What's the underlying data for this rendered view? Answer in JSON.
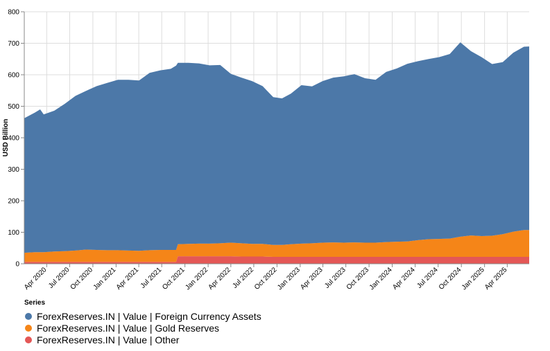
{
  "chart_data": {
    "type": "area",
    "stacked": true,
    "ylabel": "USD Billion",
    "ylim": [
      0,
      800
    ],
    "yticks": [
      0,
      100,
      200,
      300,
      400,
      500,
      600,
      700,
      800
    ],
    "xlim": [
      "2020-01-03",
      "2025-06-27"
    ],
    "xticks": [
      "Apr 2020",
      "Jul 2020",
      "Oct 2020",
      "Jan 2021",
      "Apr 2021",
      "Jul 2021",
      "Oct 2021",
      "Jan 2022",
      "Apr 2022",
      "Jul 2022",
      "Oct 2022",
      "Jan 2023",
      "Apr 2023",
      "Jul 2023",
      "Oct 2023",
      "Jan 2024",
      "Apr 2024",
      "Jul 2024",
      "Oct 2024",
      "Jan 2025",
      "Apr 2025"
    ],
    "grid": true,
    "legend_position": "bottom-left",
    "legend_title": "Series",
    "x": [
      "2020-01-03",
      "2020-02-14",
      "2020-03-06",
      "2020-03-20",
      "2020-05-01",
      "2020-06-12",
      "2020-07-24",
      "2020-09-04",
      "2020-10-16",
      "2020-11-27",
      "2021-01-08",
      "2021-02-19",
      "2021-04-02",
      "2021-05-14",
      "2021-06-25",
      "2021-08-06",
      "2021-08-27",
      "2021-09-03",
      "2021-10-15",
      "2021-11-26",
      "2022-01-07",
      "2022-02-18",
      "2022-04-01",
      "2022-05-13",
      "2022-06-24",
      "2022-08-05",
      "2022-09-16",
      "2022-10-21",
      "2022-11-25",
      "2023-01-06",
      "2023-02-17",
      "2023-03-31",
      "2023-05-12",
      "2023-06-23",
      "2023-08-04",
      "2023-09-15",
      "2023-10-27",
      "2023-12-08",
      "2024-01-19",
      "2024-03-01",
      "2024-04-12",
      "2024-05-24",
      "2024-07-05",
      "2024-08-16",
      "2024-09-27",
      "2024-11-08",
      "2024-12-20",
      "2025-01-31",
      "2025-03-14",
      "2025-04-25",
      "2025-06-06",
      "2025-06-27"
    ],
    "series": [
      {
        "name": "ForexReserves.IN | Value | Other",
        "values": [
          6,
          6,
          6,
          6,
          6,
          6,
          6,
          6,
          6,
          6,
          6,
          6,
          6,
          6,
          6,
          6,
          6,
          24,
          24,
          24,
          24,
          24,
          24,
          23,
          23,
          23,
          22,
          22,
          22,
          22,
          22,
          22,
          22,
          22,
          22,
          22,
          22,
          22,
          22,
          22,
          22,
          22,
          22,
          22,
          22,
          22,
          22,
          22,
          22,
          22,
          22,
          22
        ]
      },
      {
        "name": "ForexReserves.IN | Value | Gold Reserves",
        "values": [
          29,
          31,
          31,
          31,
          33,
          34,
          36,
          39,
          38,
          37,
          37,
          36,
          35,
          37,
          38,
          38,
          38,
          38,
          39,
          40,
          40,
          41,
          43,
          42,
          40,
          40,
          38,
          38,
          40,
          42,
          43,
          45,
          46,
          45,
          46,
          45,
          45,
          47,
          48,
          49,
          53,
          56,
          57,
          58,
          64,
          68,
          66,
          67,
          72,
          80,
          85,
          85
        ]
      },
      {
        "name": "ForexReserves.IN | Value | Foreign Currency Assets",
        "values": [
          427,
          443,
          453,
          437,
          447,
          468,
          491,
          504,
          520,
          531,
          541,
          542,
          541,
          563,
          570,
          575,
          585,
          576,
          575,
          572,
          566,
          566,
          536,
          526,
          517,
          501,
          469,
          465,
          478,
          503,
          498,
          513,
          523,
          528,
          534,
          522,
          517,
          540,
          550,
          564,
          568,
          572,
          577,
          586,
          617,
          585,
          568,
          545,
          546,
          568,
          582,
          583
        ]
      }
    ],
    "colors": [
      "#e45756",
      "#f58518",
      "#4c78a8"
    ],
    "legend": [
      {
        "label": "ForexReserves.IN | Value | Foreign Currency Assets",
        "color": "#4c78a8"
      },
      {
        "label": "ForexReserves.IN | Value | Gold Reserves",
        "color": "#f58518"
      },
      {
        "label": "ForexReserves.IN | Value | Other",
        "color": "#e45756"
      }
    ]
  }
}
